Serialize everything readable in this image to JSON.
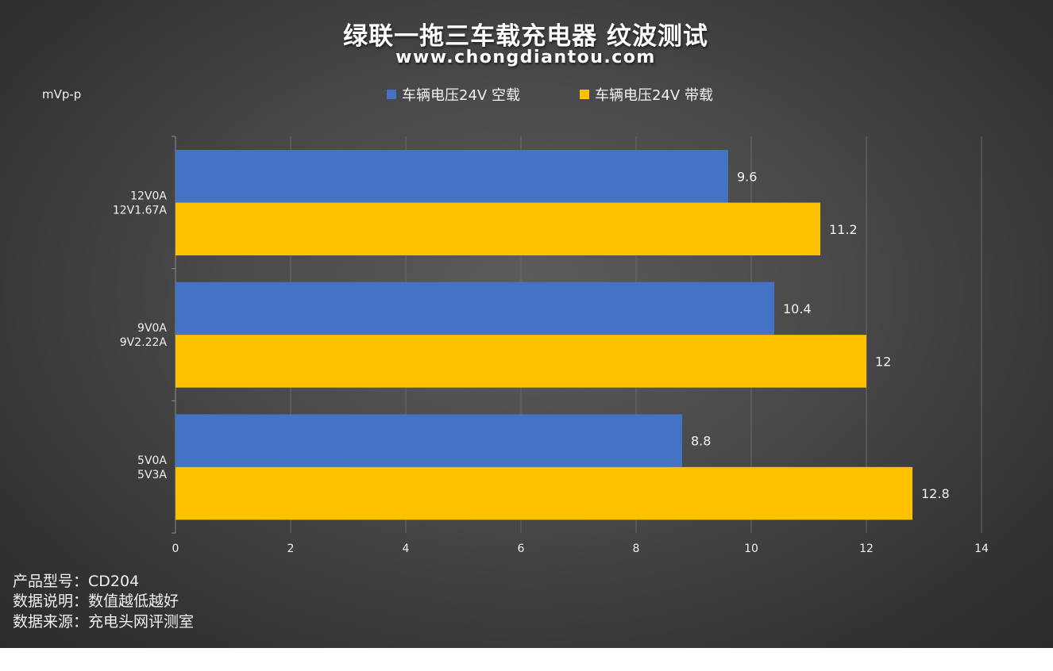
{
  "title": "绿联一拖三车载充电器 纹波测试",
  "subtitle": "www.chongdiantou.com",
  "unit_label": "mVp-p",
  "notes": [
    "产品型号：CD204",
    "数据说明：数值越低越好",
    "数据来源：充电头网评测室"
  ],
  "colors": {
    "series1": "#4472C4",
    "series2": "#FFC000",
    "grid": "#6a6a6a",
    "text": "#f2f2f2"
  },
  "chart_data": {
    "type": "bar",
    "orientation": "horizontal",
    "title": "绿联一拖三车载充电器 纹波测试",
    "ylabel": "mVp-p",
    "xlim": [
      0,
      14
    ],
    "xticks": [
      0,
      2,
      4,
      6,
      8,
      10,
      12,
      14
    ],
    "grid": true,
    "legend_position": "top",
    "categories": [
      {
        "line1": "12V0A",
        "line2": "12V1.67A"
      },
      {
        "line1": "9V0A",
        "line2": "9V2.22A"
      },
      {
        "line1": "5V0A",
        "line2": "5V3A"
      }
    ],
    "series": [
      {
        "name": "车辆电压24V 空载",
        "values": [
          9.6,
          10.4,
          8.8
        ],
        "labels": [
          "9.6",
          "10.4",
          "8.8"
        ]
      },
      {
        "name": "车辆电压24V 带载",
        "values": [
          11.2,
          12,
          12.8
        ],
        "labels": [
          "11.2",
          "12",
          "12.8"
        ]
      }
    ]
  }
}
